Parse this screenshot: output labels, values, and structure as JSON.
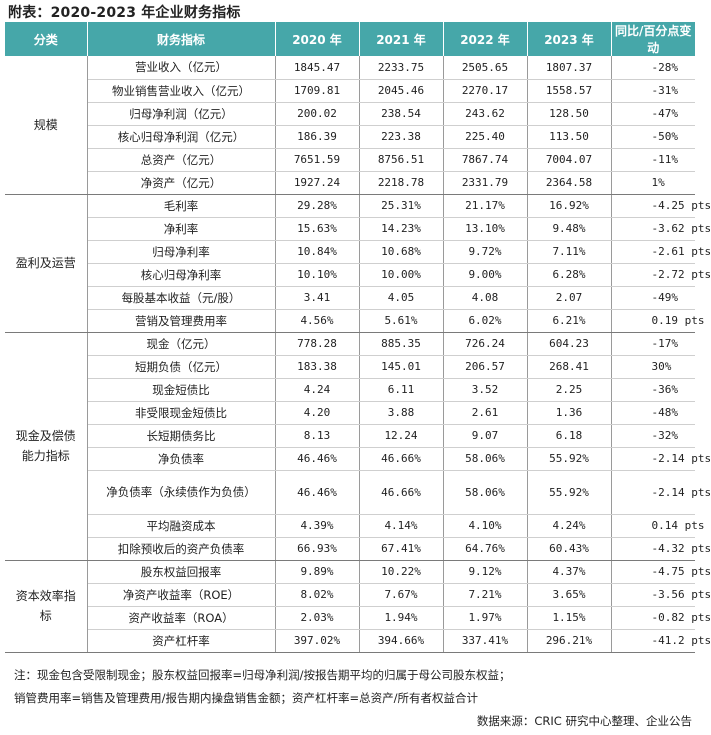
{
  "title": "附表：2020-2023 年企业财务指标",
  "headers": [
    "分类",
    "财务指标",
    "2020 年",
    "2021 年",
    "2022 年",
    "2023 年",
    "同比/百分点变动"
  ],
  "groups": [
    {
      "category": "规模",
      "rows": [
        {
          "metric": "营业收入（亿元）",
          "values": [
            "1845.47",
            "2233.75",
            "2505.65",
            "1807.37"
          ],
          "change": "-28%"
        },
        {
          "metric": "物业销售营业收入（亿元）",
          "values": [
            "1709.81",
            "2045.46",
            "2270.17",
            "1558.57"
          ],
          "change": "-31%"
        },
        {
          "metric": "归母净利润（亿元）",
          "values": [
            "200.02",
            "238.54",
            "243.62",
            "128.50"
          ],
          "change": "-47%"
        },
        {
          "metric": "核心归母净利润（亿元）",
          "values": [
            "186.39",
            "223.38",
            "225.40",
            "113.50"
          ],
          "change": "-50%"
        },
        {
          "metric": "总资产（亿元）",
          "values": [
            "7651.59",
            "8756.51",
            "7867.74",
            "7004.07"
          ],
          "change": "-11%"
        },
        {
          "metric": "净资产（亿元）",
          "values": [
            "1927.24",
            "2218.78",
            "2331.79",
            "2364.58"
          ],
          "change": "1%"
        }
      ]
    },
    {
      "category": "盈利及运营",
      "rows": [
        {
          "metric": "毛利率",
          "values": [
            "29.28%",
            "25.31%",
            "21.17%",
            "16.92%"
          ],
          "change": "-4.25 pts"
        },
        {
          "metric": "净利率",
          "values": [
            "15.63%",
            "14.23%",
            "13.10%",
            "9.48%"
          ],
          "change": "-3.62 pts"
        },
        {
          "metric": "归母净利率",
          "values": [
            "10.84%",
            "10.68%",
            "9.72%",
            "7.11%"
          ],
          "change": "-2.61 pts"
        },
        {
          "metric": "核心归母净利率",
          "values": [
            "10.10%",
            "10.00%",
            "9.00%",
            "6.28%"
          ],
          "change": "-2.72 pts"
        },
        {
          "metric": "每股基本收益（元/股）",
          "values": [
            "3.41",
            "4.05",
            "4.08",
            "2.07"
          ],
          "change": "-49%"
        },
        {
          "metric": "营销及管理费用率",
          "values": [
            "4.56%",
            "5.61%",
            "6.02%",
            "6.21%"
          ],
          "change": "0.19 pts"
        }
      ]
    },
    {
      "category": "现金及偿债能力指标",
      "rows": [
        {
          "metric": "现金（亿元）",
          "values": [
            "778.28",
            "885.35",
            "726.24",
            "604.23"
          ],
          "change": "-17%"
        },
        {
          "metric": "短期负债（亿元）",
          "values": [
            "183.38",
            "145.01",
            "206.57",
            "268.41"
          ],
          "change": "30%"
        },
        {
          "metric": "现金短债比",
          "values": [
            "4.24",
            "6.11",
            "3.52",
            "2.25"
          ],
          "change": "-36%"
        },
        {
          "metric": "非受限现金短债比",
          "values": [
            "4.20",
            "3.88",
            "2.61",
            "1.36"
          ],
          "change": "-48%"
        },
        {
          "metric": "长短期债务比",
          "values": [
            "8.13",
            "12.24",
            "9.07",
            "6.18"
          ],
          "change": "-32%"
        },
        {
          "metric": "净负债率",
          "values": [
            "46.46%",
            "46.66%",
            "58.06%",
            "55.92%"
          ],
          "change": "-2.14 pts"
        },
        {
          "metric": "净负债率（永续债作为负债）",
          "values": [
            "46.46%",
            "46.66%",
            "58.06%",
            "55.92%"
          ],
          "change": "-2.14 pts"
        },
        {
          "metric": "平均融资成本",
          "values": [
            "4.39%",
            "4.14%",
            "4.10%",
            "4.24%"
          ],
          "change": "0.14 pts"
        },
        {
          "metric": "扣除预收后的资产负债率",
          "values": [
            "66.93%",
            "67.41%",
            "64.76%",
            "60.43%"
          ],
          "change": "-4.32 pts"
        }
      ]
    },
    {
      "category": "资本效率指标",
      "rows": [
        {
          "metric": "股东权益回报率",
          "values": [
            "9.89%",
            "10.22%",
            "9.12%",
            "4.37%"
          ],
          "change": "-4.75 pts"
        },
        {
          "metric": "净资产收益率（ROE）",
          "values": [
            "8.02%",
            "7.67%",
            "7.21%",
            "3.65%"
          ],
          "change": "-3.56 pts"
        },
        {
          "metric": "资产收益率（ROA）",
          "values": [
            "2.03%",
            "1.94%",
            "1.97%",
            "1.15%"
          ],
          "change": "-0.82 pts"
        },
        {
          "metric": "资产杠杆率",
          "values": [
            "397.02%",
            "394.66%",
            "337.41%",
            "296.21%"
          ],
          "change": "-41.2 pts"
        }
      ]
    }
  ],
  "notes": [
    "注：现金包含受限制现金；股东权益回报率=归母净利润/按报告期平均的归属于母公司股东权益；",
    "销管费用率=销售及管理费用/报告期内操盘销售金额；资产杠杆率=总资产/所有者权益合计"
  ],
  "source": "数据来源：CRIC 研究中心整理、企业公告",
  "colors": {
    "header_bg": "#46a7a9",
    "header_text": "#ffffff"
  }
}
